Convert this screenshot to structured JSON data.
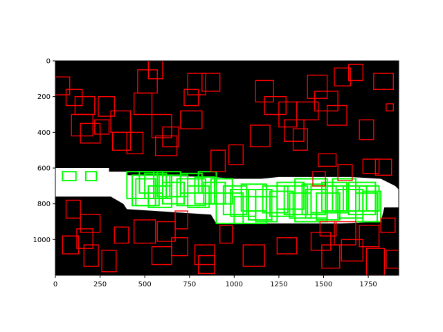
{
  "chart_data": {
    "type": "image-annotation",
    "title": "",
    "xlabel": "",
    "ylabel": "",
    "xlim": [
      0,
      1920
    ],
    "ylim": [
      1200,
      0
    ],
    "x_ticks": [
      0,
      250,
      500,
      750,
      1000,
      1250,
      1500,
      1750
    ],
    "y_ticks": [
      0,
      200,
      400,
      600,
      800,
      1000
    ],
    "grid": false,
    "colors": {
      "background": "#000000",
      "mask": "#ffffff",
      "red_boxes": "#ff0000",
      "green_boxes": "#00ff00"
    },
    "mask_polygon": [
      [
        0,
        600
      ],
      [
        300,
        600
      ],
      [
        300,
        620
      ],
      [
        400,
        620
      ],
      [
        400,
        640
      ],
      [
        880,
        650
      ],
      [
        1000,
        660
      ],
      [
        1150,
        660
      ],
      [
        1250,
        650
      ],
      [
        1500,
        650
      ],
      [
        1650,
        650
      ],
      [
        1820,
        660
      ],
      [
        1900,
        700
      ],
      [
        1920,
        720
      ],
      [
        1920,
        820
      ],
      [
        1840,
        820
      ],
      [
        1820,
        900
      ],
      [
        1600,
        910
      ],
      [
        900,
        910
      ],
      [
        870,
        860
      ],
      [
        400,
        830
      ],
      [
        380,
        800
      ],
      [
        310,
        760
      ],
      [
        0,
        760
      ]
    ],
    "green_boxes": [
      [
        40,
        620,
        75,
        50
      ],
      [
        170,
        620,
        60,
        50
      ],
      [
        400,
        620,
        150,
        150
      ],
      [
        430,
        640,
        150,
        170
      ],
      [
        450,
        660,
        110,
        150
      ],
      [
        470,
        620,
        130,
        120
      ],
      [
        500,
        630,
        120,
        140
      ],
      [
        520,
        700,
        130,
        120
      ],
      [
        550,
        640,
        100,
        130
      ],
      [
        570,
        620,
        130,
        140
      ],
      [
        600,
        680,
        120,
        120
      ],
      [
        640,
        640,
        100,
        120
      ],
      [
        680,
        660,
        160,
        150
      ],
      [
        700,
        630,
        120,
        110
      ],
      [
        740,
        700,
        120,
        120
      ],
      [
        780,
        650,
        110,
        150
      ],
      [
        800,
        620,
        100,
        120
      ],
      [
        830,
        680,
        120,
        120
      ],
      [
        870,
        660,
        120,
        140
      ],
      [
        900,
        740,
        150,
        170
      ],
      [
        940,
        700,
        130,
        160
      ],
      [
        980,
        720,
        140,
        150
      ],
      [
        1000,
        760,
        180,
        150
      ],
      [
        1040,
        690,
        140,
        150
      ],
      [
        1080,
        720,
        130,
        170
      ],
      [
        1120,
        760,
        120,
        140
      ],
      [
        1160,
        700,
        140,
        150
      ],
      [
        1200,
        730,
        130,
        140
      ],
      [
        1240,
        680,
        150,
        150
      ],
      [
        1280,
        700,
        130,
        160
      ],
      [
        1310,
        740,
        120,
        140
      ],
      [
        1340,
        660,
        180,
        240
      ],
      [
        1380,
        690,
        130,
        170
      ],
      [
        1400,
        720,
        120,
        160
      ],
      [
        1430,
        700,
        140,
        150
      ],
      [
        1460,
        740,
        130,
        150
      ],
      [
        1490,
        680,
        140,
        160
      ],
      [
        1520,
        700,
        120,
        150
      ],
      [
        1550,
        660,
        130,
        180
      ],
      [
        1580,
        720,
        140,
        160
      ],
      [
        1610,
        700,
        130,
        140
      ],
      [
        1640,
        680,
        150,
        180
      ],
      [
        1680,
        740,
        120,
        160
      ],
      [
        1700,
        700,
        110,
        140
      ],
      [
        1720,
        730,
        100,
        170
      ]
    ],
    "red_boxes": [
      [
        0,
        90,
        80,
        100
      ],
      [
        60,
        160,
        90,
        90
      ],
      [
        110,
        200,
        110,
        100
      ],
      [
        90,
        300,
        120,
        120
      ],
      [
        140,
        350,
        110,
        110
      ],
      [
        220,
        330,
        80,
        80
      ],
      [
        240,
        200,
        90,
        110
      ],
      [
        310,
        280,
        110,
        120
      ],
      [
        320,
        400,
        100,
        100
      ],
      [
        400,
        400,
        90,
        120
      ],
      [
        440,
        180,
        100,
        120
      ],
      [
        460,
        50,
        110,
        130
      ],
      [
        520,
        0,
        80,
        100
      ],
      [
        540,
        300,
        110,
        130
      ],
      [
        560,
        420,
        120,
        110
      ],
      [
        600,
        370,
        90,
        110
      ],
      [
        700,
        280,
        120,
        100
      ],
      [
        720,
        160,
        80,
        90
      ],
      [
        740,
        70,
        100,
        120
      ],
      [
        820,
        70,
        100,
        100
      ],
      [
        870,
        500,
        80,
        120
      ],
      [
        970,
        470,
        80,
        110
      ],
      [
        1090,
        360,
        110,
        120
      ],
      [
        1120,
        110,
        100,
        120
      ],
      [
        1170,
        200,
        120,
        100
      ],
      [
        1250,
        230,
        100,
        140
      ],
      [
        1280,
        330,
        110,
        120
      ],
      [
        1330,
        380,
        80,
        120
      ],
      [
        1350,
        230,
        120,
        100
      ],
      [
        1410,
        80,
        110,
        130
      ],
      [
        1450,
        170,
        130,
        110
      ],
      [
        1520,
        250,
        110,
        110
      ],
      [
        1560,
        40,
        90,
        100
      ],
      [
        1640,
        20,
        80,
        90
      ],
      [
        1700,
        330,
        80,
        110
      ],
      [
        1780,
        70,
        110,
        90
      ],
      [
        1850,
        240,
        40,
        40
      ],
      [
        1720,
        550,
        90,
        80
      ],
      [
        1790,
        550,
        90,
        90
      ],
      [
        1470,
        520,
        100,
        70
      ],
      [
        1440,
        620,
        70,
        80
      ],
      [
        1580,
        580,
        80,
        90
      ],
      [
        60,
        780,
        80,
        100
      ],
      [
        140,
        860,
        110,
        100
      ],
      [
        120,
        940,
        90,
        110
      ],
      [
        40,
        980,
        90,
        100
      ],
      [
        160,
        1030,
        80,
        120
      ],
      [
        260,
        1060,
        80,
        120
      ],
      [
        330,
        930,
        80,
        90
      ],
      [
        440,
        890,
        120,
        130
      ],
      [
        570,
        900,
        100,
        110
      ],
      [
        670,
        840,
        70,
        100
      ],
      [
        650,
        990,
        90,
        100
      ],
      [
        540,
        1040,
        110,
        100
      ],
      [
        780,
        1030,
        110,
        110
      ],
      [
        800,
        1090,
        90,
        100
      ],
      [
        920,
        920,
        70,
        100
      ],
      [
        1050,
        1030,
        120,
        120
      ],
      [
        1240,
        990,
        110,
        90
      ],
      [
        1430,
        960,
        110,
        100
      ],
      [
        1490,
        1030,
        100,
        130
      ],
      [
        1600,
        1000,
        120,
        120
      ],
      [
        1700,
        920,
        110,
        120
      ],
      [
        1740,
        1050,
        100,
        150
      ],
      [
        1850,
        1060,
        90,
        100
      ],
      [
        1820,
        880,
        80,
        80
      ],
      [
        1480,
        900,
        90,
        80
      ],
      [
        1560,
        900,
        120,
        130
      ]
    ]
  }
}
